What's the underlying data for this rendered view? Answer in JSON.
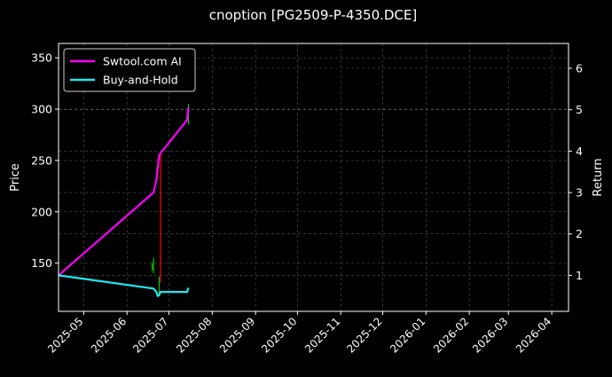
{
  "chart_data": {
    "type": "line",
    "title": "cnoption [PG2509-P-4350.DCE]",
    "xlabel": "",
    "ylabel": "Price",
    "ylabel_right": "Return",
    "x_ticks": [
      "2025-05",
      "2025-06",
      "2025-07",
      "2025-08",
      "2025-09",
      "2025-10",
      "2025-11",
      "2025-12",
      "2026-01",
      "2026-02",
      "2026-03",
      "2026-04"
    ],
    "x_range": [
      "2025-04-13",
      "2026-04-13"
    ],
    "y_left_ticks": [
      150,
      200,
      250,
      300,
      350
    ],
    "y_left_range": [
      103,
      364
    ],
    "y_right_ticks": [
      1,
      2,
      3,
      4,
      5,
      6
    ],
    "y_right_range": [
      0.13,
      6.6
    ],
    "grid": true,
    "legend": "top-left",
    "series": [
      {
        "name": "Swtool.com AI",
        "color": "#ff00ff",
        "axis": "right",
        "points": [
          [
            "2025-04-13",
            1.0
          ],
          [
            "2025-06-20",
            3.0
          ],
          [
            "2025-06-22",
            3.3
          ],
          [
            "2025-06-24",
            3.9
          ],
          [
            "2025-06-25",
            3.95
          ],
          [
            "2025-07-14",
            4.75
          ],
          [
            "2025-07-15",
            5.05
          ]
        ]
      },
      {
        "name": "Buy-and-Hold",
        "color": "#22e4f0",
        "axis": "right",
        "points": [
          [
            "2025-04-13",
            1.0
          ],
          [
            "2025-06-20",
            0.68
          ],
          [
            "2025-06-22",
            0.6
          ],
          [
            "2025-06-23",
            0.5
          ],
          [
            "2025-06-24",
            0.52
          ],
          [
            "2025-06-25",
            0.6
          ],
          [
            "2025-06-29",
            0.6
          ],
          [
            "2025-07-14",
            0.6
          ],
          [
            "2025-07-15",
            0.7
          ]
        ]
      }
    ],
    "candles": [
      {
        "date": "2025-06-19",
        "low": 143,
        "high": 150,
        "color": "#00cc00"
      },
      {
        "date": "2025-06-20",
        "low": 140,
        "high": 155,
        "color": "#00cc00"
      },
      {
        "date": "2025-06-24",
        "low": 118,
        "high": 137,
        "color": "#00cc00"
      },
      {
        "date": "2025-06-25",
        "low": 131,
        "high": 257,
        "color": "#ff0000"
      },
      {
        "date": "2025-07-15",
        "low": 285,
        "high": 305,
        "color": "#00cc00"
      }
    ]
  }
}
